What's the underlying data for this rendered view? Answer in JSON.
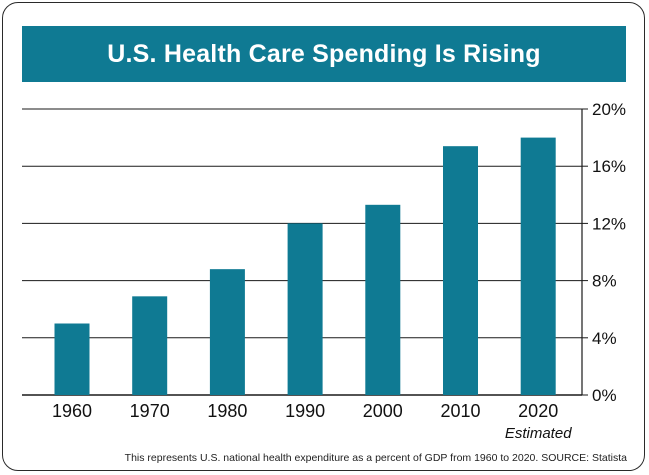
{
  "title": "U.S. Health Care Spending Is Rising",
  "footnote": "This represents U.S. national health expenditure as a percent of GDP from 1960 to 2020. SOURCE: Statista",
  "colors": {
    "bar": "#0f7a93",
    "banner": "#0f7a93",
    "grid": "#1a1a1a"
  },
  "chart_data": {
    "type": "bar",
    "title": "U.S. Health Care Spending Is Rising",
    "categories": [
      "1960",
      "1970",
      "1980",
      "1990",
      "2000",
      "2010",
      "2020"
    ],
    "category_sublabels": [
      "",
      "",
      "",
      "",
      "",
      "",
      "Estimated"
    ],
    "values": [
      5.0,
      6.9,
      8.8,
      12.0,
      13.3,
      17.4,
      18.0
    ],
    "ylim": [
      0,
      20
    ],
    "yticks": [
      0,
      4,
      8,
      12,
      16,
      20
    ],
    "ytick_labels": [
      "0%",
      "4%",
      "8%",
      "12%",
      "16%",
      "20%"
    ],
    "grid": true,
    "xlabel": "",
    "ylabel": ""
  }
}
